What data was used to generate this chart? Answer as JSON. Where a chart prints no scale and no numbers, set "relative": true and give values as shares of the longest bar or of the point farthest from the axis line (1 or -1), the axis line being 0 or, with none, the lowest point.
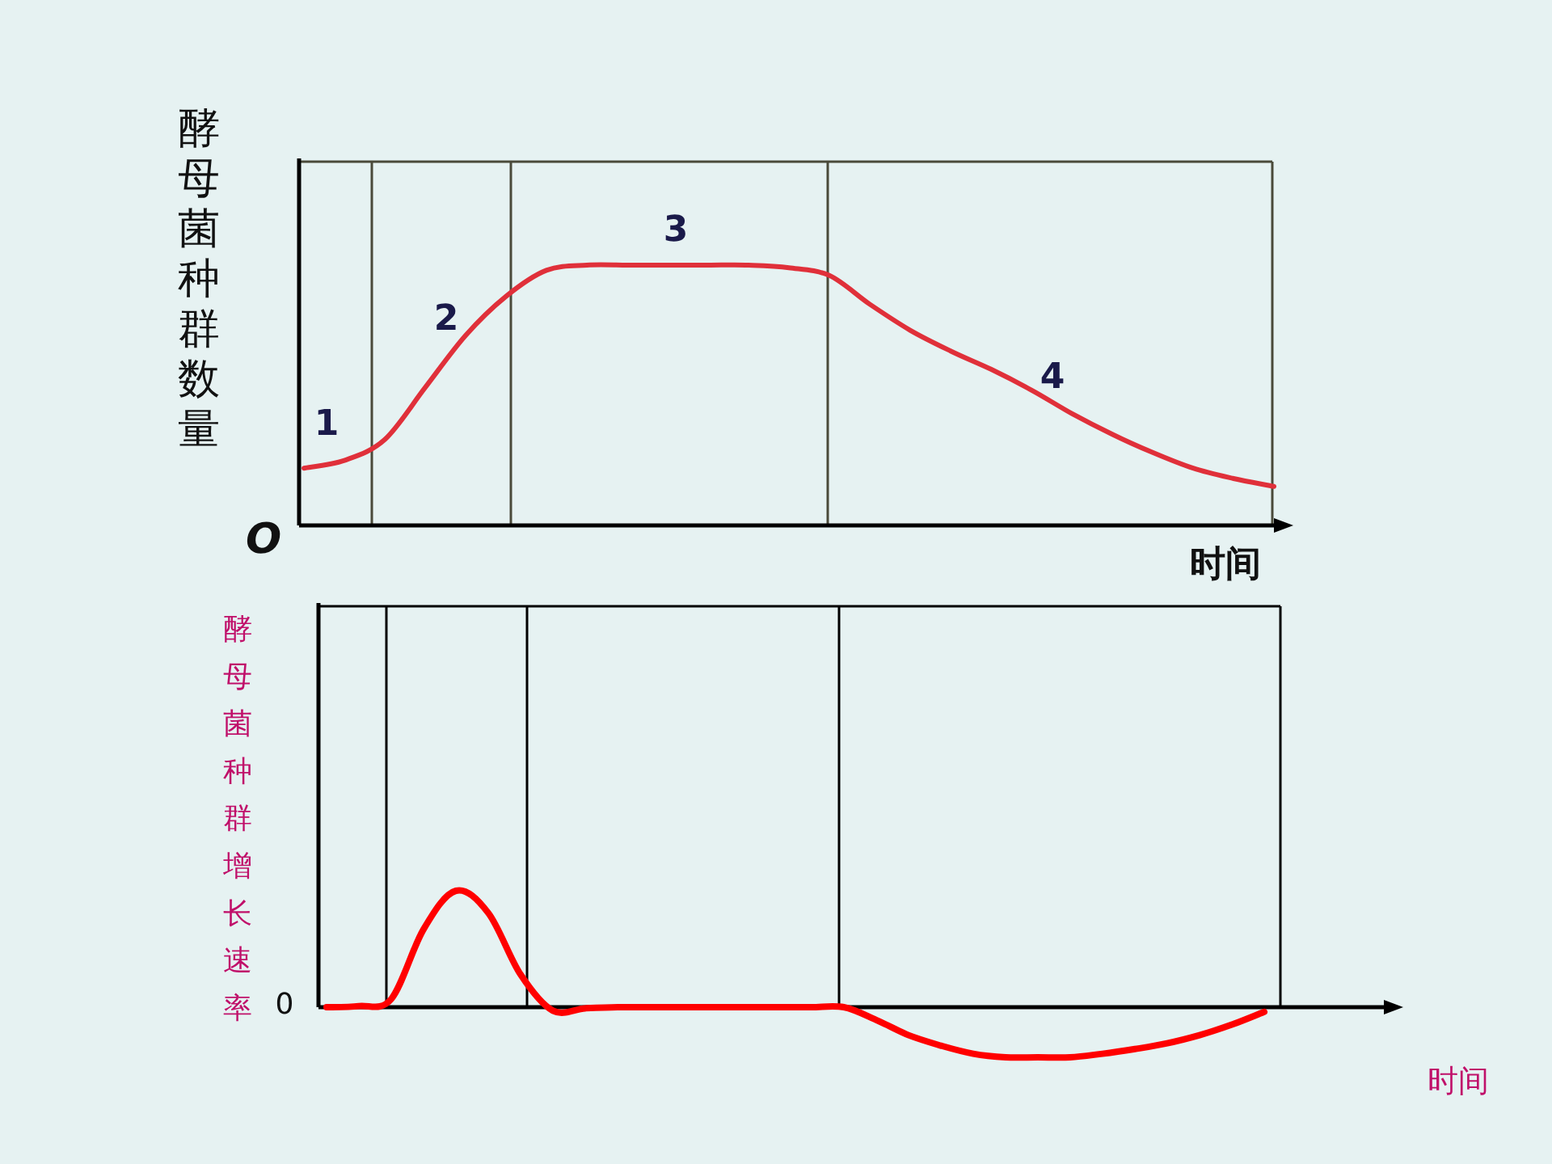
{
  "chart_data": [
    {
      "type": "line",
      "relative": true,
      "ylabel": "酵母菌种群数量",
      "xlabel": "时间",
      "categories": [
        null,
        null,
        null,
        null,
        null,
        null,
        null,
        null,
        null,
        null,
        null,
        null,
        null,
        null,
        null,
        null,
        null,
        null,
        null,
        null,
        null,
        null,
        null,
        null,
        null
      ],
      "series": [
        {
          "color": "#e0303a",
          "values": [
            0.22,
            0.25,
            0.33,
            0.53,
            0.73,
            0.88,
            0.98,
            1,
            1,
            1,
            1,
            1,
            0.99,
            0.96,
            0.85,
            0.75,
            0.67,
            0.6,
            0.52,
            0.43,
            0.35,
            0.28,
            0.22,
            0.18,
            0.15
          ]
        }
      ],
      "annotations": [
        "1",
        "2",
        "3",
        "4",
        "O"
      ],
      "grid": false,
      "marker": "none",
      "line_style": "solid"
    },
    {
      "type": "line",
      "relative": true,
      "ylabel": "酵母菌种群增长速率",
      "xlabel": "时间",
      "categories": [
        null,
        null,
        null,
        null,
        null,
        null,
        null,
        null,
        null,
        null,
        null,
        null,
        null,
        null,
        null,
        null,
        null,
        null,
        null,
        null,
        null,
        null,
        null,
        null,
        null,
        null,
        null,
        null,
        null,
        null
      ],
      "series": [
        {
          "color": "#ff0000",
          "values": [
            0,
            0.01,
            0.07,
            0.67,
            1,
            0.81,
            0.28,
            -0.03,
            -0.01,
            0,
            0,
            0,
            0,
            0,
            0,
            0,
            0,
            -0.11,
            -0.24,
            -0.33,
            -0.4,
            -0.43,
            -0.43,
            -0.43,
            -0.4,
            -0.36,
            -0.31,
            -0.24,
            -0.15,
            -0.04
          ]
        }
      ],
      "annotations": [
        "0"
      ],
      "grid": false,
      "marker": "none",
      "line_style": "solid"
    }
  ]
}
